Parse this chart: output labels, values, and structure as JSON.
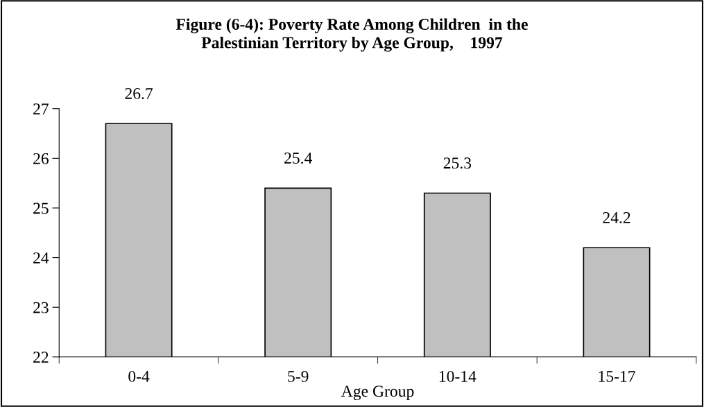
{
  "chart_data": {
    "type": "bar",
    "title": "Figure (6-4): Poverty Rate Among Children  in the\nPalestinian Territory by Age Group,    1997",
    "xlabel": "Age Group",
    "categories": [
      "0-4",
      "5-9",
      "10-14",
      "15-17"
    ],
    "values": [
      26.7,
      25.4,
      25.3,
      24.2
    ],
    "color": "#c0c0c0",
    "ylim": [
      22,
      27
    ],
    "yticks": [
      22,
      23,
      24,
      25,
      26,
      27
    ],
    "data_labels": true,
    "grid": false,
    "legend": false
  }
}
